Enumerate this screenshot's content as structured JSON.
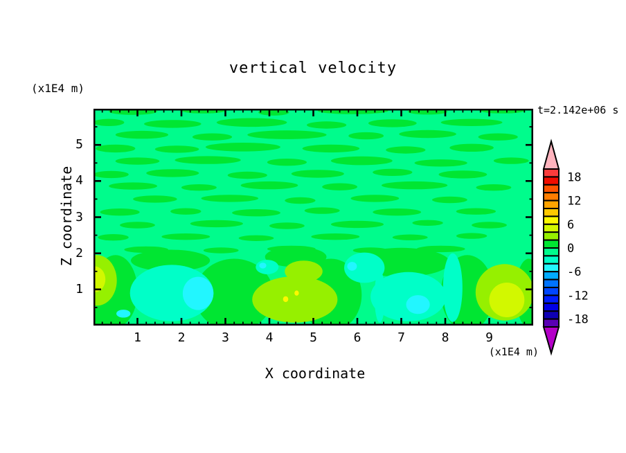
{
  "title": "vertical velocity",
  "time_label": "t=2.142e+06 s",
  "x_axis": {
    "title": "X coordinate",
    "unit": "(x1E4 m)"
  },
  "y_axis": {
    "title": "Z coordinate",
    "unit": "(x1E4 m)"
  },
  "colorbar": {
    "labels": [
      "18",
      "12",
      "6",
      "0",
      "-6",
      "-12",
      "-18"
    ],
    "over_arrow_color": "#ffb4be",
    "under_arrow_color": "#b400c8"
  },
  "chart_data": {
    "type": "heatmap",
    "subtype": "filled-contour",
    "title": "vertical velocity",
    "xlabel": "X coordinate",
    "x_unit": "(x1E4 m)",
    "ylabel": "Z coordinate",
    "y_unit": "(x1E4 m)",
    "annotation": "t=2.142e+06 s",
    "x_range": [
      0,
      10
    ],
    "y_range": [
      0,
      6
    ],
    "x_major_ticks": [
      1,
      2,
      3,
      4,
      5,
      6,
      7,
      8,
      9
    ],
    "x_minor_step": 0.2,
    "y_major_ticks": [
      1,
      2,
      3,
      4,
      5
    ],
    "y_minor_step": 0.5,
    "value_range": [
      -20,
      20
    ],
    "contour_interval": 2,
    "colorbar_tick_labels": [
      18,
      12,
      6,
      0,
      -6,
      -12,
      -18
    ],
    "palette_top_to_bottom": [
      {
        "v": [
          18,
          20
        ],
        "c": "#fa3c3c"
      },
      {
        "v": [
          16,
          18
        ],
        "c": "#f00c00"
      },
      {
        "v": [
          14,
          16
        ],
        "c": "#ff5200"
      },
      {
        "v": [
          12,
          14
        ],
        "c": "#ff7d00"
      },
      {
        "v": [
          10,
          12
        ],
        "c": "#ffa300"
      },
      {
        "v": [
          8,
          10
        ],
        "c": "#ffc800"
      },
      {
        "v": [
          6,
          8
        ],
        "c": "#fcf800"
      },
      {
        "v": [
          4,
          6
        ],
        "c": "#d2f800"
      },
      {
        "v": [
          2,
          4
        ],
        "c": "#96f000"
      },
      {
        "v": [
          0,
          2
        ],
        "c": "#00e632"
      },
      {
        "v": [
          -2,
          0
        ],
        "c": "#00fc8c"
      },
      {
        "v": [
          -4,
          -2
        ],
        "c": "#00ffc8"
      },
      {
        "v": [
          -6,
          -4
        ],
        "c": "#22f6ff"
      },
      {
        "v": [
          -8,
          -6
        ],
        "c": "#00aaff"
      },
      {
        "v": [
          -10,
          -8
        ],
        "c": "#0073ff"
      },
      {
        "v": [
          -12,
          -10
        ],
        "c": "#0046ff"
      },
      {
        "v": [
          -14,
          -12
        ],
        "c": "#001eff"
      },
      {
        "v": [
          -16,
          -14
        ],
        "c": "#0000e6"
      },
      {
        "v": [
          -18,
          -16
        ],
        "c": "#0f00b4"
      },
      {
        "v": [
          -20,
          -18
        ],
        "c": "#5a00b4"
      }
    ],
    "field": {
      "background_level": "-2..0",
      "background_color": "#00fc8c",
      "stripe_level": "0..2",
      "stripe_color": "#00e632",
      "stripes": [
        [
          0.9,
          5.93,
          0.55,
          0.1
        ],
        [
          2.5,
          5.95,
          0.5,
          0.08
        ],
        [
          4.1,
          5.9,
          0.35,
          0.09
        ],
        [
          5.9,
          5.94,
          0.8,
          0.09
        ],
        [
          7.6,
          5.92,
          0.45,
          0.08
        ],
        [
          9.3,
          5.95,
          0.5,
          0.08
        ],
        [
          0.35,
          5.62,
          0.35,
          0.1
        ],
        [
          1.8,
          5.58,
          0.65,
          0.11
        ],
        [
          3.6,
          5.62,
          0.8,
          0.12
        ],
        [
          5.3,
          5.55,
          0.45,
          0.1
        ],
        [
          6.8,
          5.6,
          0.55,
          0.11
        ],
        [
          8.6,
          5.62,
          0.7,
          0.1
        ],
        [
          1.1,
          5.28,
          0.6,
          0.11
        ],
        [
          2.7,
          5.22,
          0.45,
          0.1
        ],
        [
          4.4,
          5.28,
          0.9,
          0.12
        ],
        [
          6.2,
          5.25,
          0.4,
          0.1
        ],
        [
          7.6,
          5.3,
          0.65,
          0.11
        ],
        [
          9.2,
          5.22,
          0.45,
          0.1
        ],
        [
          0.5,
          4.9,
          0.45,
          0.11
        ],
        [
          1.9,
          4.88,
          0.5,
          0.1
        ],
        [
          3.4,
          4.94,
          0.85,
          0.12
        ],
        [
          5.4,
          4.9,
          0.65,
          0.11
        ],
        [
          7.1,
          4.86,
          0.45,
          0.1
        ],
        [
          8.6,
          4.92,
          0.5,
          0.11
        ],
        [
          1.0,
          4.55,
          0.5,
          0.1
        ],
        [
          2.6,
          4.58,
          0.75,
          0.11
        ],
        [
          4.4,
          4.52,
          0.45,
          0.1
        ],
        [
          6.1,
          4.56,
          0.7,
          0.12
        ],
        [
          7.9,
          4.5,
          0.6,
          0.1
        ],
        [
          9.5,
          4.56,
          0.4,
          0.09
        ],
        [
          0.4,
          4.18,
          0.4,
          0.1
        ],
        [
          1.8,
          4.22,
          0.6,
          0.11
        ],
        [
          3.5,
          4.16,
          0.45,
          0.1
        ],
        [
          5.1,
          4.2,
          0.6,
          0.11
        ],
        [
          6.8,
          4.24,
          0.45,
          0.1
        ],
        [
          8.4,
          4.18,
          0.55,
          0.11
        ],
        [
          0.9,
          3.86,
          0.55,
          0.1
        ],
        [
          2.4,
          3.82,
          0.4,
          0.09
        ],
        [
          4.0,
          3.88,
          0.65,
          0.11
        ],
        [
          5.6,
          3.84,
          0.4,
          0.1
        ],
        [
          7.3,
          3.88,
          0.75,
          0.11
        ],
        [
          9.1,
          3.82,
          0.4,
          0.09
        ],
        [
          1.4,
          3.5,
          0.5,
          0.1
        ],
        [
          3.1,
          3.52,
          0.65,
          0.1
        ],
        [
          4.7,
          3.46,
          0.35,
          0.09
        ],
        [
          6.4,
          3.52,
          0.55,
          0.1
        ],
        [
          8.1,
          3.48,
          0.4,
          0.09
        ],
        [
          0.6,
          3.14,
          0.45,
          0.1
        ],
        [
          2.1,
          3.16,
          0.35,
          0.09
        ],
        [
          3.7,
          3.12,
          0.55,
          0.1
        ],
        [
          5.2,
          3.18,
          0.4,
          0.09
        ],
        [
          6.9,
          3.14,
          0.55,
          0.1
        ],
        [
          8.7,
          3.16,
          0.45,
          0.09
        ],
        [
          1.0,
          2.78,
          0.4,
          0.09
        ],
        [
          2.8,
          2.82,
          0.6,
          0.1
        ],
        [
          4.4,
          2.76,
          0.4,
          0.09
        ],
        [
          6.0,
          2.8,
          0.6,
          0.1
        ],
        [
          7.6,
          2.84,
          0.35,
          0.08
        ],
        [
          9.0,
          2.78,
          0.4,
          0.09
        ],
        [
          0.45,
          2.44,
          0.35,
          0.09
        ],
        [
          2.1,
          2.46,
          0.55,
          0.09
        ],
        [
          3.7,
          2.42,
          0.4,
          0.08
        ],
        [
          5.5,
          2.46,
          0.55,
          0.09
        ],
        [
          7.2,
          2.44,
          0.4,
          0.08
        ],
        [
          8.6,
          2.48,
          0.35,
          0.08
        ],
        [
          1.2,
          2.1,
          0.5,
          0.09
        ],
        [
          2.9,
          2.08,
          0.4,
          0.08
        ],
        [
          4.5,
          2.12,
          0.55,
          0.09
        ],
        [
          6.3,
          2.08,
          0.4,
          0.08
        ],
        [
          7.9,
          2.12,
          0.55,
          0.09
        ]
      ],
      "bottom_band_green": [
        [
          0.5,
          0.95,
          0.5,
          1.0
        ],
        [
          3.2,
          0.85,
          0.9,
          1.0
        ],
        [
          5.4,
          0.85,
          0.7,
          1.0
        ],
        [
          8.5,
          0.9,
          0.6,
          1.05
        ],
        [
          9.9,
          0.9,
          0.3,
          0.95
        ],
        [
          7.0,
          1.75,
          1.1,
          0.4
        ],
        [
          1.75,
          1.8,
          0.9,
          0.3
        ],
        [
          4.6,
          1.9,
          0.7,
          0.28
        ],
        [
          0.15,
          0.2,
          0.5,
          0.3
        ]
      ],
      "cells": [
        {
          "level": "-4..-2",
          "color": "#00ffc8",
          "blobs": [
            [
              1.78,
              0.9,
              0.95,
              0.78
            ],
            [
              6.16,
              1.6,
              0.46,
              0.42
            ],
            [
              6.51,
              0.8,
              0.12,
              0.72
            ],
            [
              7.16,
              0.8,
              0.86,
              0.68
            ],
            [
              8.17,
              1.05,
              0.22,
              0.95
            ],
            [
              3.95,
              1.62,
              0.26,
              0.2
            ]
          ]
        },
        {
          "level": "-6..-4",
          "color": "#22f6ff",
          "blobs": [
            [
              2.38,
              0.89,
              0.35,
              0.46
            ],
            [
              7.38,
              0.58,
              0.27,
              0.26
            ],
            [
              5.88,
              1.64,
              0.11,
              0.12
            ],
            [
              0.68,
              0.33,
              0.16,
              0.11
            ],
            [
              3.85,
              1.66,
              0.08,
              0.08
            ]
          ]
        },
        {
          "level": "2..4",
          "color": "#96f000",
          "blobs": [
            [
              0.08,
              1.25,
              0.45,
              0.7
            ],
            [
              4.58,
              0.72,
              0.97,
              0.64
            ],
            [
              4.78,
              1.5,
              0.43,
              0.3
            ],
            [
              9.35,
              0.92,
              0.66,
              0.78
            ]
          ]
        },
        {
          "level": "4..6",
          "color": "#d2f800",
          "blobs": [
            [
              0.02,
              1.28,
              0.25,
              0.36
            ],
            [
              9.4,
              0.71,
              0.4,
              0.48
            ]
          ]
        },
        {
          "level": "6..8",
          "color": "#fcf800",
          "blobs": [
            [
              4.37,
              0.73,
              0.06,
              0.08
            ],
            [
              4.62,
              0.9,
              0.05,
              0.07
            ]
          ]
        }
      ]
    }
  }
}
